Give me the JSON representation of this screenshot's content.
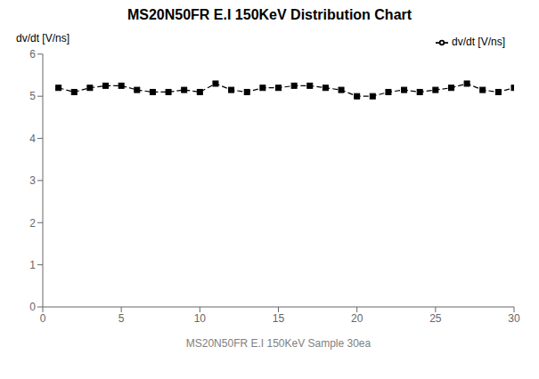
{
  "chart_data": {
    "type": "line",
    "title": "MS20N50FR E.I 150KeV Distribution Chart",
    "xlabel": "MS20N50FR E.I 150KeV Sample 30ea",
    "ylabel": "dv/dt [V/ns]",
    "x": [
      1,
      2,
      3,
      4,
      5,
      6,
      7,
      8,
      9,
      10,
      11,
      12,
      13,
      14,
      15,
      16,
      17,
      18,
      19,
      20,
      21,
      22,
      23,
      24,
      25,
      26,
      27,
      28,
      29,
      30
    ],
    "series": [
      {
        "name": "dv/dt [V/ns]",
        "color": "#000000",
        "marker": "square",
        "line_style": "dashed",
        "values": [
          5.2,
          5.1,
          5.2,
          5.25,
          5.25,
          5.15,
          5.1,
          5.1,
          5.15,
          5.1,
          5.3,
          5.15,
          5.1,
          5.2,
          5.2,
          5.25,
          5.25,
          5.2,
          5.15,
          5.0,
          5.0,
          5.1,
          5.15,
          5.1,
          5.15,
          5.2,
          5.3,
          5.15,
          5.1,
          5.2
        ]
      }
    ],
    "xlim": [
      0,
      30
    ],
    "ylim": [
      0,
      6
    ],
    "xticks": [
      0,
      5,
      10,
      15,
      20,
      25,
      30
    ],
    "yticks": [
      0,
      1,
      2,
      3,
      4,
      5,
      6
    ],
    "legend": "upper right",
    "grid": false
  }
}
